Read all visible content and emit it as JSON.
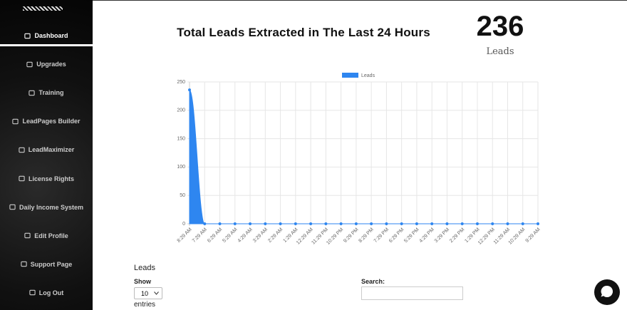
{
  "sidebar": {
    "items": [
      "Dashboard",
      "Upgrades",
      "Training",
      "LeadPages Builder",
      "LeadMaximizer",
      "License Rights",
      "Daily Income System",
      "Edit Profile",
      "Support Page",
      "Log Out"
    ],
    "active": "Dashboard"
  },
  "header": {
    "title": "Total Leads Extracted in The Last 24 Hours",
    "count": 236,
    "count_label": "Leads"
  },
  "chart_data": {
    "type": "area",
    "categories": [
      "8:29 AM",
      "7:29 AM",
      "6:29 AM",
      "5:29 AM",
      "4:29 AM",
      "3:29 AM",
      "2:29 AM",
      "1:29 AM",
      "12:29 AM",
      "11:29 PM",
      "10:29 PM",
      "9:29 PM",
      "8:29 PM",
      "7:29 PM",
      "6:29 PM",
      "5:29 PM",
      "4:29 PM",
      "3:29 PM",
      "2:29 PM",
      "1:29 PM",
      "12:29 PM",
      "11:29 AM",
      "10:29 AM",
      "9:29 AM"
    ],
    "series": [
      {
        "name": "Leads",
        "color": "#2e86f0",
        "values": [
          236,
          0,
          0,
          0,
          0,
          0,
          0,
          0,
          0,
          0,
          0,
          0,
          0,
          0,
          0,
          0,
          0,
          0,
          0,
          0,
          0,
          0,
          0,
          0
        ]
      }
    ],
    "ylim": [
      0,
      250
    ],
    "yticks": [
      0,
      50,
      100,
      150,
      200,
      250
    ],
    "grid": true,
    "legend": "top"
  },
  "table": {
    "title": "Leads",
    "show": "Show",
    "page_size": "10",
    "entries": "entries",
    "search": "Search:"
  }
}
